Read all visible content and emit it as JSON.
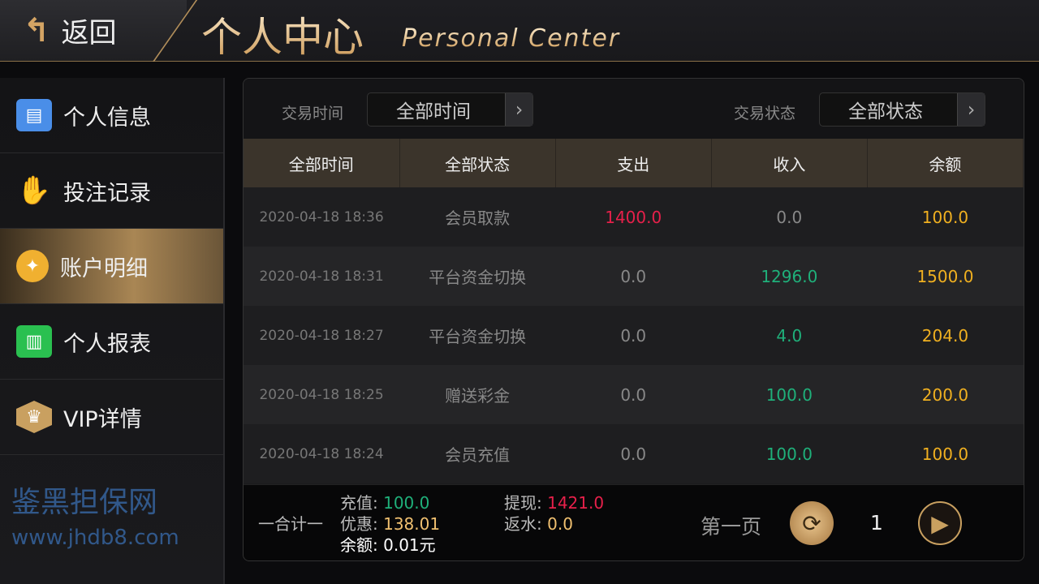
{
  "header": {
    "back_label": "返回",
    "title": "个人中心",
    "subtitle": "Personal Center"
  },
  "sidebar": {
    "items": [
      {
        "label": "个人信息",
        "icon": "id-card-icon",
        "color": "#4a8ee8"
      },
      {
        "label": "投注记录",
        "icon": "hand-icon",
        "color": "#d8202a"
      },
      {
        "label": "账户明细",
        "icon": "diamond-coin-icon",
        "color": "#f0b030",
        "active": true
      },
      {
        "label": "个人报表",
        "icon": "bar-chart-icon",
        "color": "#2ac050"
      },
      {
        "label": "VIP详情",
        "icon": "vip-crown-icon",
        "color": "#c9a060"
      }
    ]
  },
  "filters": {
    "time_label": "交易时间",
    "time_value": "全部时间",
    "status_label": "交易状态",
    "status_value": "全部状态"
  },
  "table": {
    "headers": [
      "全部时间",
      "全部状态",
      "支出",
      "收入",
      "余额"
    ],
    "rows": [
      {
        "time": "2020-04-18  18:36",
        "status": "会员取款",
        "out": "1400.0",
        "in": "0.0",
        "balance": "100.0"
      },
      {
        "time": "2020-04-18  18:31",
        "status": "平台资金切换",
        "out": "0.0",
        "in": "1296.0",
        "balance": "1500.0"
      },
      {
        "time": "2020-04-18  18:27",
        "status": "平台资金切换",
        "out": "0.0",
        "in": "4.0",
        "balance": "204.0"
      },
      {
        "time": "2020-04-18  18:25",
        "status": "赠送彩金",
        "out": "0.0",
        "in": "100.0",
        "balance": "200.0"
      },
      {
        "time": "2020-04-18  18:24",
        "status": "会员充值",
        "out": "0.0",
        "in": "100.0",
        "balance": "100.0"
      }
    ]
  },
  "summary": {
    "label": "一合计一",
    "recharge_label": "充值:",
    "recharge": "100.0",
    "bonus_label": "优惠:",
    "bonus": "138.01",
    "balance_label": "余额:",
    "balance": "0.01元",
    "withdraw_label": "提现:",
    "withdraw": "1421.0",
    "rebate_label": "返水:",
    "rebate": "0.0"
  },
  "pager": {
    "first_page": "第一页",
    "page": "1"
  },
  "watermark": {
    "name": "鉴黑担保网",
    "url": "www.jhdb8.com"
  }
}
